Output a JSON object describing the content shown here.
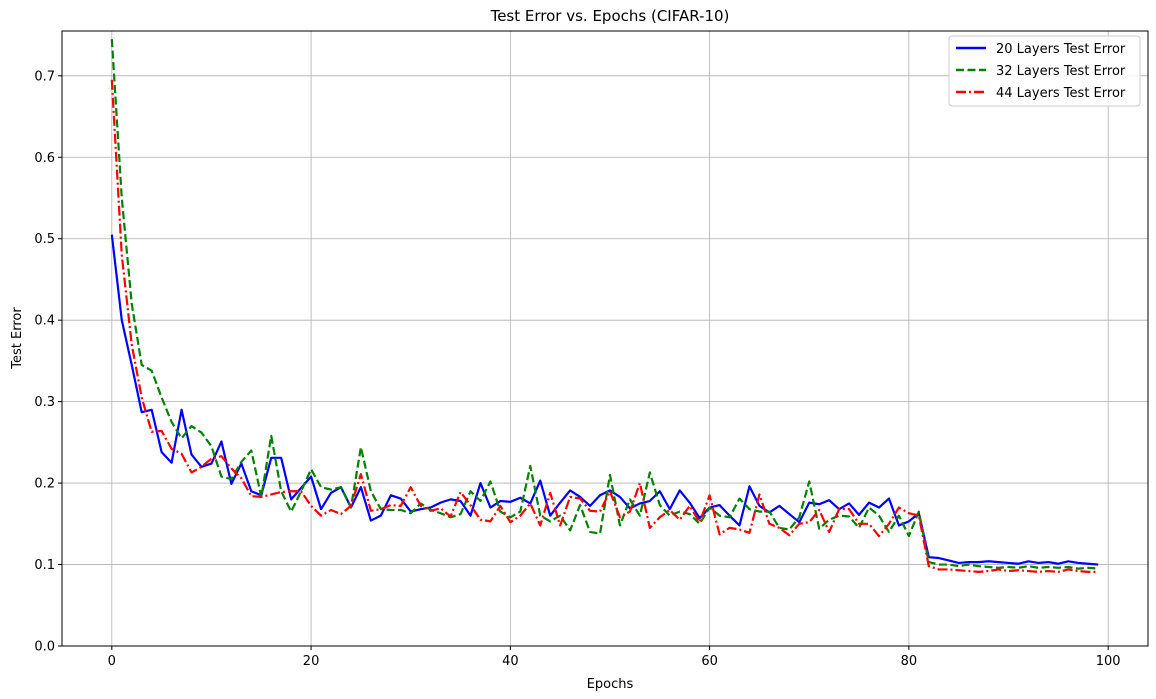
{
  "chart_data": {
    "type": "line",
    "title": "Test Error vs. Epochs (CIFAR-10)",
    "xlabel": "Epochs",
    "ylabel": "Test Error",
    "xlim": [
      -5,
      104
    ],
    "ylim": [
      0,
      0.755
    ],
    "xticks": [
      0,
      20,
      40,
      60,
      80,
      100
    ],
    "yticks": [
      0.0,
      0.1,
      0.2,
      0.3,
      0.4,
      0.5,
      0.6,
      0.7
    ],
    "grid": true,
    "legend_position": "top-right",
    "x": [
      0,
      1,
      2,
      3,
      4,
      5,
      6,
      7,
      8,
      9,
      10,
      11,
      12,
      13,
      14,
      15,
      16,
      17,
      18,
      19,
      20,
      21,
      22,
      23,
      24,
      25,
      26,
      27,
      28,
      29,
      30,
      31,
      32,
      33,
      34,
      35,
      36,
      37,
      38,
      39,
      40,
      41,
      42,
      43,
      44,
      45,
      46,
      47,
      48,
      49,
      50,
      51,
      52,
      53,
      54,
      55,
      56,
      57,
      58,
      59,
      60,
      61,
      62,
      63,
      64,
      65,
      66,
      67,
      68,
      69,
      70,
      71,
      72,
      73,
      74,
      75,
      76,
      77,
      78,
      79,
      80,
      81,
      82,
      83,
      84,
      85,
      86,
      87,
      88,
      89,
      90,
      91,
      92,
      93,
      94,
      95,
      96,
      97,
      98,
      99
    ],
    "series": [
      {
        "name": "20 Layers Test Error",
        "color": "#0000ff",
        "dash": "solid",
        "values": [
          0.505,
          0.4,
          0.345,
          0.287,
          0.29,
          0.238,
          0.225,
          0.29,
          0.235,
          0.22,
          0.224,
          0.251,
          0.199,
          0.224,
          0.19,
          0.185,
          0.231,
          0.231,
          0.18,
          0.194,
          0.208,
          0.168,
          0.188,
          0.195,
          0.17,
          0.195,
          0.154,
          0.16,
          0.185,
          0.181,
          0.165,
          0.168,
          0.17,
          0.176,
          0.18,
          0.178,
          0.16,
          0.2,
          0.17,
          0.178,
          0.177,
          0.182,
          0.175,
          0.203,
          0.16,
          0.176,
          0.191,
          0.183,
          0.172,
          0.185,
          0.191,
          0.183,
          0.169,
          0.175,
          0.178,
          0.19,
          0.168,
          0.191,
          0.176,
          0.157,
          0.17,
          0.173,
          0.16,
          0.148,
          0.196,
          0.172,
          0.164,
          0.172,
          0.162,
          0.152,
          0.176,
          0.174,
          0.179,
          0.168,
          0.175,
          0.161,
          0.176,
          0.17,
          0.181,
          0.148,
          0.153,
          0.163,
          0.109,
          0.108,
          0.105,
          0.102,
          0.103,
          0.103,
          0.104,
          0.103,
          0.102,
          0.101,
          0.104,
          0.102,
          0.103,
          0.101,
          0.104,
          0.102,
          0.101,
          0.1
        ]
      },
      {
        "name": "32 Layers Test Error",
        "color": "#008000",
        "dash": "dashed",
        "values": [
          0.745,
          0.55,
          0.42,
          0.345,
          0.338,
          0.305,
          0.275,
          0.255,
          0.27,
          0.262,
          0.245,
          0.208,
          0.205,
          0.226,
          0.24,
          0.183,
          0.258,
          0.19,
          0.165,
          0.19,
          0.217,
          0.195,
          0.192,
          0.195,
          0.17,
          0.244,
          0.19,
          0.168,
          0.167,
          0.167,
          0.163,
          0.175,
          0.167,
          0.163,
          0.158,
          0.162,
          0.19,
          0.178,
          0.202,
          0.165,
          0.158,
          0.165,
          0.221,
          0.16,
          0.153,
          0.16,
          0.142,
          0.173,
          0.14,
          0.138,
          0.21,
          0.148,
          0.18,
          0.16,
          0.213,
          0.173,
          0.16,
          0.165,
          0.162,
          0.15,
          0.17,
          0.16,
          0.158,
          0.181,
          0.168,
          0.165,
          0.165,
          0.145,
          0.143,
          0.158,
          0.202,
          0.144,
          0.155,
          0.16,
          0.159,
          0.145,
          0.17,
          0.16,
          0.14,
          0.16,
          0.135,
          0.165,
          0.103,
          0.1,
          0.1,
          0.098,
          0.1,
          0.098,
          0.097,
          0.096,
          0.097,
          0.096,
          0.098,
          0.096,
          0.097,
          0.096,
          0.097,
          0.095,
          0.096,
          0.095
        ]
      },
      {
        "name": "44 Layers Test Error",
        "color": "#ff0000",
        "dash": "dashdot",
        "values": [
          0.695,
          0.48,
          0.37,
          0.305,
          0.263,
          0.264,
          0.242,
          0.236,
          0.213,
          0.22,
          0.23,
          0.233,
          0.218,
          0.206,
          0.184,
          0.183,
          0.186,
          0.189,
          0.19,
          0.19,
          0.172,
          0.16,
          0.167,
          0.162,
          0.172,
          0.211,
          0.166,
          0.168,
          0.173,
          0.172,
          0.195,
          0.172,
          0.166,
          0.169,
          0.159,
          0.189,
          0.173,
          0.155,
          0.153,
          0.172,
          0.152,
          0.16,
          0.175,
          0.148,
          0.188,
          0.148,
          0.183,
          0.181,
          0.166,
          0.165,
          0.19,
          0.158,
          0.165,
          0.2,
          0.145,
          0.158,
          0.167,
          0.155,
          0.172,
          0.152,
          0.185,
          0.137,
          0.145,
          0.143,
          0.139,
          0.186,
          0.15,
          0.145,
          0.136,
          0.15,
          0.152,
          0.167,
          0.14,
          0.168,
          0.168,
          0.15,
          0.15,
          0.135,
          0.15,
          0.17,
          0.163,
          0.16,
          0.098,
          0.094,
          0.094,
          0.093,
          0.092,
          0.091,
          0.092,
          0.094,
          0.092,
          0.093,
          0.092,
          0.091,
          0.092,
          0.091,
          0.094,
          0.092,
          0.091,
          0.091
        ]
      }
    ]
  }
}
